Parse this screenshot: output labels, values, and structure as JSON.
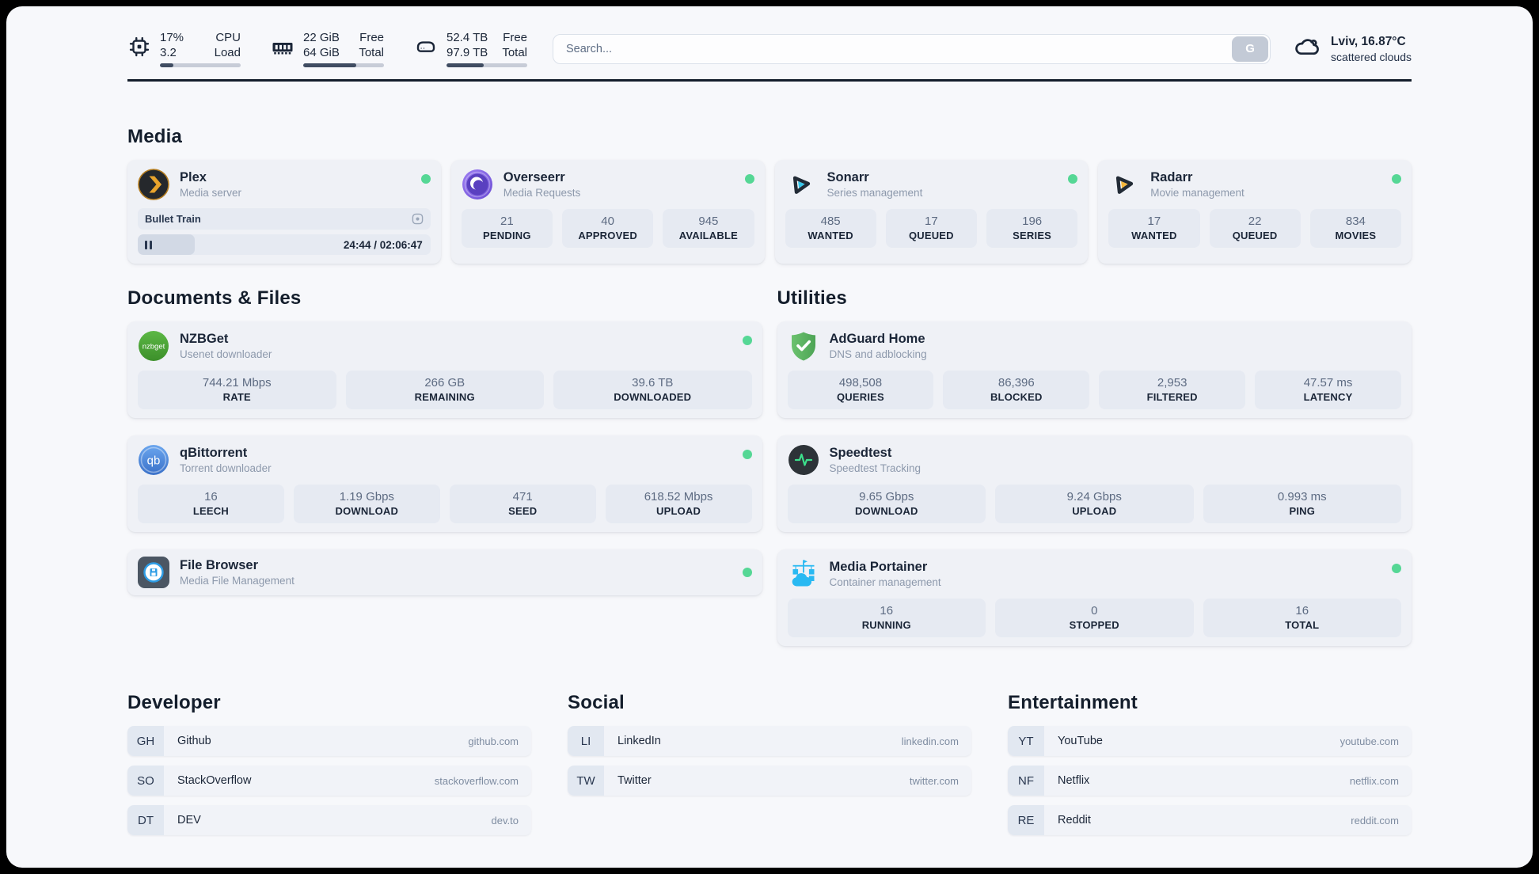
{
  "colors": {
    "status_online": "#55d795",
    "accent_dark": "#1b2638",
    "progress_fill": "#3f4c61"
  },
  "header": {
    "widgets": [
      {
        "icon": "cpu-chip-icon",
        "value1": "17%",
        "label1": "CPU",
        "value2": "3.2",
        "label2": "Load",
        "progress_pct": 17
      },
      {
        "icon": "memory-icon",
        "value1": "22 GiB",
        "label1": "Free",
        "value2": "64 GiB",
        "label2": "Total",
        "progress_pct": 66
      },
      {
        "icon": "hard-drive-icon",
        "value1": "52.4 TB",
        "label1": "Free",
        "value2": "97.9 TB",
        "label2": "Total",
        "progress_pct": 46
      }
    ],
    "search": {
      "placeholder": "Search...",
      "provider_button": "G"
    },
    "weather": {
      "icon": "cloud-icon",
      "summary": "Lviv, 16.87°C",
      "condition": "scattered clouds"
    }
  },
  "media": {
    "title": "Media",
    "plex": {
      "name": "Plex",
      "desc": "Media server",
      "now_playing": "Bullet Train",
      "time": "24:44 / 02:06:47",
      "progress_pct": 19.5
    },
    "overseerr": {
      "name": "Overseerr",
      "desc": "Media Requests",
      "stats": [
        {
          "value": "21",
          "label": "PENDING"
        },
        {
          "value": "40",
          "label": "APPROVED"
        },
        {
          "value": "945",
          "label": "AVAILABLE"
        }
      ]
    },
    "sonarr": {
      "name": "Sonarr",
      "desc": "Series management",
      "stats": [
        {
          "value": "485",
          "label": "WANTED"
        },
        {
          "value": "17",
          "label": "QUEUED"
        },
        {
          "value": "196",
          "label": "SERIES"
        }
      ]
    },
    "radarr": {
      "name": "Radarr",
      "desc": "Movie management",
      "stats": [
        {
          "value": "17",
          "label": "WANTED"
        },
        {
          "value": "22",
          "label": "QUEUED"
        },
        {
          "value": "834",
          "label": "MOVIES"
        }
      ]
    }
  },
  "documents": {
    "title": "Documents & Files",
    "nzbget": {
      "name": "NZBGet",
      "desc": "Usenet downloader",
      "stats": [
        {
          "value": "744.21 Mbps",
          "label": "RATE"
        },
        {
          "value": "266 GB",
          "label": "REMAINING"
        },
        {
          "value": "39.6 TB",
          "label": "DOWNLOADED"
        }
      ]
    },
    "qbittorrent": {
      "name": "qBittorrent",
      "desc": "Torrent downloader",
      "stats": [
        {
          "value": "16",
          "label": "LEECH"
        },
        {
          "value": "1.19 Gbps",
          "label": "DOWNLOAD"
        },
        {
          "value": "471",
          "label": "SEED"
        },
        {
          "value": "618.52 Mbps",
          "label": "UPLOAD"
        }
      ]
    },
    "filebrowser": {
      "name": "File Browser",
      "desc": "Media File Management"
    }
  },
  "utilities": {
    "title": "Utilities",
    "adguard": {
      "name": "AdGuard Home",
      "desc": "DNS and adblocking",
      "stats": [
        {
          "value": "498,508",
          "label": "QUERIES"
        },
        {
          "value": "86,396",
          "label": "BLOCKED"
        },
        {
          "value": "2,953",
          "label": "FILTERED"
        },
        {
          "value": "47.57 ms",
          "label": "LATENCY"
        }
      ]
    },
    "speedtest": {
      "name": "Speedtest",
      "desc": "Speedtest Tracking",
      "stats": [
        {
          "value": "9.65 Gbps",
          "label": "DOWNLOAD"
        },
        {
          "value": "9.24 Gbps",
          "label": "UPLOAD"
        },
        {
          "value": "0.993 ms",
          "label": "PING"
        }
      ]
    },
    "portainer": {
      "name": "Media Portainer",
      "desc": "Container management",
      "stats": [
        {
          "value": "16",
          "label": "RUNNING"
        },
        {
          "value": "0",
          "label": "STOPPED"
        },
        {
          "value": "16",
          "label": "TOTAL"
        }
      ]
    }
  },
  "bookmark_groups": [
    {
      "title": "Developer",
      "items": [
        {
          "abbr": "GH",
          "name": "Github",
          "url": "github.com"
        },
        {
          "abbr": "SO",
          "name": "StackOverflow",
          "url": "stackoverflow.com"
        },
        {
          "abbr": "DT",
          "name": "DEV",
          "url": "dev.to"
        }
      ]
    },
    {
      "title": "Social",
      "items": [
        {
          "abbr": "LI",
          "name": "LinkedIn",
          "url": "linkedin.com"
        },
        {
          "abbr": "TW",
          "name": "Twitter",
          "url": "twitter.com"
        }
      ]
    },
    {
      "title": "Entertainment",
      "items": [
        {
          "abbr": "YT",
          "name": "YouTube",
          "url": "youtube.com"
        },
        {
          "abbr": "NF",
          "name": "Netflix",
          "url": "netflix.com"
        },
        {
          "abbr": "RE",
          "name": "Reddit",
          "url": "reddit.com"
        }
      ]
    }
  ]
}
